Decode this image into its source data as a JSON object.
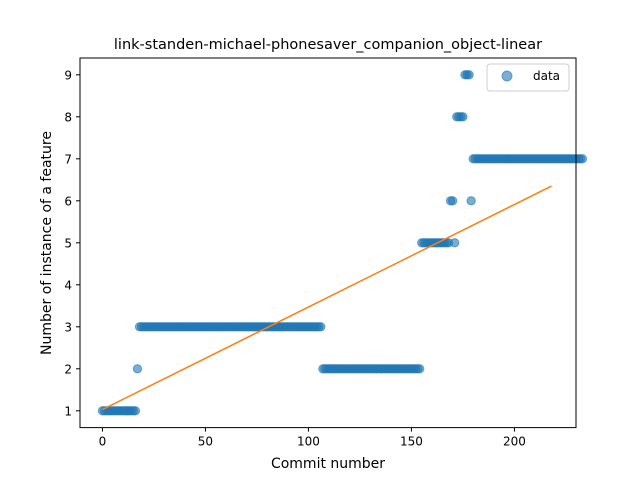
{
  "chart_data": {
    "type": "scatter",
    "title": "link-standen-michael-phonesaver_companion_object-linear",
    "xlabel": "Commit number",
    "ylabel": "Number of instance of a feature",
    "xlim": [
      -10.9,
      229.9
    ],
    "ylim": [
      0.6,
      9.4
    ],
    "xticks": [
      0,
      50,
      100,
      150,
      200
    ],
    "yticks": [
      1,
      2,
      3,
      4,
      5,
      6,
      7,
      8,
      9
    ],
    "grid": false,
    "legend": {
      "placement": "top-right",
      "entries": [
        "data"
      ]
    },
    "colors": {
      "data": "#1f77b4",
      "fit": "#ff7f0e"
    },
    "series": [
      {
        "name": "data",
        "kind": "scatter",
        "x_start": 0,
        "y": [
          1,
          1,
          1,
          1,
          1,
          1,
          1,
          1,
          1,
          1,
          1,
          1,
          1,
          1,
          1,
          1,
          1,
          2,
          3,
          3,
          3,
          3,
          3,
          3,
          3,
          3,
          3,
          3,
          3,
          3,
          3,
          3,
          3,
          3,
          3,
          3,
          3,
          3,
          3,
          3,
          3,
          3,
          3,
          3,
          3,
          3,
          3,
          3,
          3,
          3,
          3,
          3,
          3,
          3,
          3,
          3,
          3,
          3,
          3,
          3,
          3,
          3,
          3,
          3,
          3,
          3,
          3,
          3,
          3,
          3,
          3,
          3,
          3,
          3,
          3,
          3,
          3,
          3,
          3,
          3,
          3,
          3,
          3,
          3,
          3,
          3,
          3,
          3,
          3,
          3,
          3,
          3,
          3,
          3,
          3,
          3,
          3,
          3,
          3,
          3,
          3,
          3,
          3,
          3,
          3,
          3,
          3,
          2,
          2,
          2,
          2,
          2,
          2,
          2,
          2,
          2,
          2,
          2,
          2,
          2,
          2,
          2,
          2,
          2,
          2,
          2,
          2,
          2,
          2,
          2,
          2,
          2,
          2,
          2,
          2,
          2,
          2,
          2,
          2,
          2,
          2,
          2,
          2,
          2,
          2,
          2,
          2,
          2,
          2,
          2,
          2,
          2,
          2,
          2,
          2,
          5,
          5,
          5,
          5,
          5,
          5,
          5,
          5,
          5,
          5,
          5,
          5,
          5,
          5,
          6,
          6,
          5,
          8,
          8,
          8,
          8,
          9,
          9,
          9,
          6,
          7,
          7,
          7,
          7,
          7,
          7,
          7,
          7,
          7,
          7,
          7,
          7,
          7,
          7,
          7,
          7,
          7,
          7,
          7,
          7,
          7,
          7,
          7,
          7,
          7,
          7,
          7,
          7,
          7,
          7,
          7,
          7,
          7,
          7,
          7,
          7,
          7,
          7,
          7,
          7,
          7,
          7,
          7,
          7,
          7,
          7,
          7,
          7,
          7,
          7,
          7,
          7,
          7,
          7
        ]
      },
      {
        "kind": "line",
        "x": [
          0,
          218
        ],
        "y": [
          1.03,
          6.35
        ]
      }
    ]
  }
}
